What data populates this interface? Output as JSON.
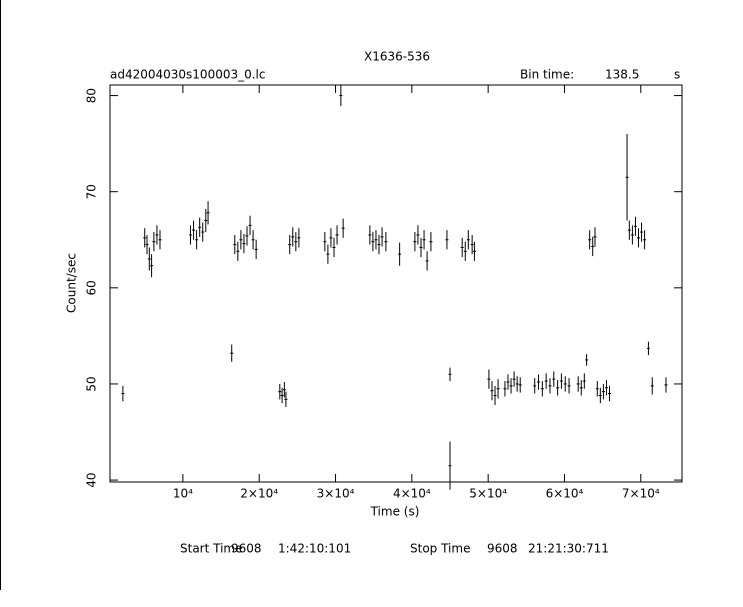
{
  "chart_data": {
    "type": "errorbar",
    "title": "X1636-536",
    "file_name": "ad42004030s100003_0.lc",
    "bin_time_label": "Bin time:",
    "bin_time": 138.5,
    "bin_time_unit": "s",
    "x_label": "Time (s)",
    "y_label": "Count/sec",
    "start_label": "Start Time",
    "start_day": "9608",
    "start_time": "1:42:10:101",
    "stop_label": "Stop Time",
    "stop_day": "9608",
    "stop_time": "21:21:30:711",
    "color": "#000000",
    "xlim": [
      450,
      75400
    ],
    "ylim": [
      39.8,
      81.1
    ],
    "xticks": [
      {
        "value": 10000,
        "label": "10⁴"
      },
      {
        "value": 20000,
        "label": "2×10⁴"
      },
      {
        "value": 30000,
        "label": "3×10⁴"
      },
      {
        "value": 40000,
        "label": "4×10⁴"
      },
      {
        "value": 50000,
        "label": "5×10⁴"
      },
      {
        "value": 60000,
        "label": "6×10⁴"
      },
      {
        "value": 70000,
        "label": "7×10⁴"
      }
    ],
    "yticks": [
      40,
      50,
      60,
      70,
      80
    ],
    "x": [
      2140,
      5000,
      5300,
      5600,
      5900,
      6200,
      6600,
      7000,
      11000,
      11400,
      11800,
      12200,
      12600,
      13000,
      13300,
      16400,
      16800,
      17200,
      17600,
      18000,
      18400,
      18800,
      19200,
      19600,
      22700,
      23000,
      23300,
      23500,
      24000,
      24400,
      24800,
      25200,
      28600,
      29000,
      29400,
      29800,
      30200,
      30700,
      31000,
      34500,
      34900,
      35300,
      35700,
      36100,
      36600,
      38400,
      40400,
      40800,
      41200,
      41600,
      42000,
      42500,
      44600,
      45000,
      45000,
      46600,
      47000,
      47400,
      47900,
      48200,
      50100,
      50500,
      50900,
      51300,
      52200,
      52600,
      53000,
      53400,
      53800,
      54200,
      56100,
      56600,
      57100,
      57600,
      58100,
      58600,
      59100,
      59600,
      60100,
      60600,
      61800,
      62200,
      62600,
      62900,
      63300,
      63700,
      64000,
      64300,
      64700,
      65100,
      65500,
      65900,
      68200,
      68500,
      68900,
      69300,
      69700,
      70100,
      70500,
      71000,
      71500,
      73300
    ],
    "values": [
      49.0,
      65.2,
      64.5,
      63.0,
      62.3,
      64.8,
      65.5,
      65.0,
      65.5,
      66.0,
      65.0,
      66.3,
      65.8,
      67.0,
      67.8,
      53.2,
      64.5,
      63.8,
      65.0,
      64.6,
      65.4,
      66.5,
      65.0,
      64.0,
      49.2,
      48.8,
      49.4,
      48.4,
      64.5,
      65.3,
      64.8,
      65.2,
      64.8,
      63.5,
      65.2,
      64.2,
      65.5,
      80.0,
      66.2,
      65.5,
      64.8,
      65.0,
      64.5,
      65.3,
      64.8,
      63.5,
      64.8,
      65.5,
      64.2,
      65.0,
      62.8,
      64.8,
      65.0,
      51.0,
      41.5,
      64.2,
      63.8,
      65.0,
      64.5,
      63.8,
      50.5,
      49.3,
      48.8,
      49.5,
      49.5,
      50.2,
      49.8,
      50.5,
      50.0,
      49.9,
      49.8,
      50.2,
      49.5,
      50.3,
      49.8,
      50.5,
      49.6,
      50.3,
      50.0,
      49.8,
      50.0,
      49.6,
      50.3,
      52.5,
      65.0,
      64.3,
      65.3,
      49.5,
      48.8,
      49.2,
      49.6,
      49.0,
      71.5,
      66.0,
      65.5,
      66.4,
      65.2,
      65.8,
      65.0,
      53.7,
      49.8,
      49.9
    ],
    "errors": [
      0.8,
      1,
      1,
      1.2,
      1.2,
      1,
      1,
      1,
      1,
      1,
      1,
      1,
      1,
      1.2,
      1.2,
      0.9,
      1,
      1,
      1,
      1,
      1,
      1,
      1,
      1,
      0.8,
      0.8,
      0.8,
      0.8,
      1,
      1,
      1,
      1,
      1,
      1,
      1,
      1,
      1,
      1.1,
      1,
      1,
      1,
      1,
      1,
      1,
      1,
      1.2,
      1,
      1,
      1,
      1,
      1,
      1,
      1,
      0.7,
      2.5,
      1,
      1,
      1,
      1,
      1,
      1,
      1,
      1,
      1,
      0.8,
      0.8,
      0.8,
      0.8,
      0.8,
      0.8,
      0.8,
      0.8,
      0.8,
      0.8,
      0.8,
      0.8,
      0.8,
      0.8,
      0.8,
      0.8,
      0.8,
      0.8,
      0.8,
      0.6,
      1,
      1,
      1,
      0.8,
      0.8,
      0.8,
      0.8,
      0.8,
      4.5,
      1,
      1,
      1,
      1,
      1,
      1,
      0.7,
      0.9,
      0.8
    ]
  }
}
